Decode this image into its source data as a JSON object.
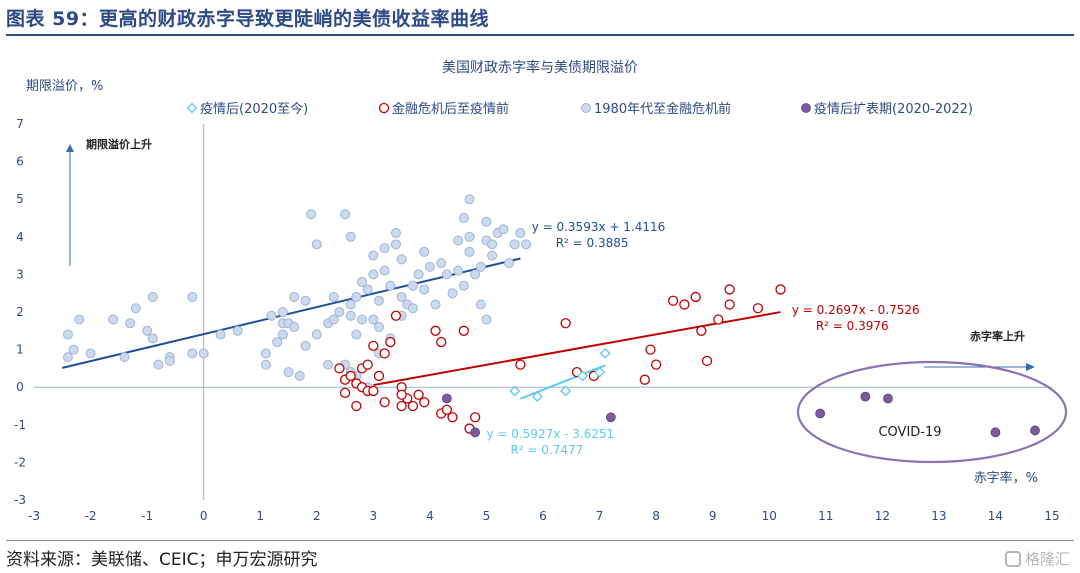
{
  "header": {
    "title": "图表 59：更高的财政赤字导致更陡峭的美债收益率曲线"
  },
  "footer": {
    "source": "资料来源：美联储、CEIC；申万宏源研究",
    "watermark": "格隆汇"
  },
  "colors": {
    "brand": "#2e4a86",
    "post_covid": "#5bc8f5",
    "post_crisis": "#c00000",
    "pre_crisis_fill": "#cdd9ee",
    "pre_crisis_edge": "#9fb4d8",
    "covid_expansion": "#7a5c9e",
    "fit_1980": "#1f4e9c",
    "fit_crisis": "#c00000",
    "fit_covid": "#5bc8f5"
  },
  "chart_data": {
    "type": "scatter",
    "title": "美国财政赤字率与美债期限溢价",
    "ylabel": "期限溢价，%",
    "xlabel": "赤字率，%",
    "xlim": [
      -3,
      15
    ],
    "ylim": [
      -3,
      7
    ],
    "x_ticks": [
      "-3",
      "-2",
      "-1",
      "0",
      "1",
      "2",
      "3",
      "4",
      "5",
      "6",
      "7",
      "8",
      "9",
      "10",
      "11",
      "12",
      "13",
      "14",
      "15"
    ],
    "y_ticks": [
      "7",
      "6",
      "5",
      "4",
      "3",
      "2",
      "1",
      "0",
      "-1",
      "-2",
      "-3"
    ],
    "grid": false,
    "legend_position": "top",
    "annotations": {
      "y_arrow_label": "期限溢价上升",
      "x_arrow_label": "赤字率上升",
      "covid_label": "COVID-19"
    },
    "series": [
      {
        "name": "疫情后(2020至今)",
        "marker": "diamond",
        "points": [
          [
            5.5,
            -0.1
          ],
          [
            5.9,
            -0.25
          ],
          [
            6.4,
            -0.1
          ],
          [
            6.7,
            0.3
          ],
          [
            7.0,
            0.4
          ],
          [
            7.1,
            0.9
          ]
        ]
      },
      {
        "name": "金融危机后至疫情前",
        "marker": "circle-open",
        "points": [
          [
            2.4,
            0.5
          ],
          [
            2.5,
            0.2
          ],
          [
            2.5,
            -0.15
          ],
          [
            2.6,
            0.3
          ],
          [
            2.7,
            0.1
          ],
          [
            2.8,
            0.5
          ],
          [
            2.8,
            0.0
          ],
          [
            2.9,
            -0.1
          ],
          [
            2.9,
            0.6
          ],
          [
            3.0,
            -0.1
          ],
          [
            3.1,
            0.3
          ],
          [
            3.2,
            0.9
          ],
          [
            3.3,
            1.2
          ],
          [
            3.4,
            1.9
          ],
          [
            3.0,
            1.1
          ],
          [
            3.2,
            -0.4
          ],
          [
            3.5,
            0.0
          ],
          [
            3.6,
            -0.3
          ],
          [
            3.7,
            -0.5
          ],
          [
            3.8,
            -0.2
          ],
          [
            3.9,
            -0.4
          ],
          [
            4.1,
            1.5
          ],
          [
            4.2,
            1.2
          ],
          [
            4.2,
            -0.7
          ],
          [
            4.3,
            -0.6
          ],
          [
            4.4,
            -0.8
          ],
          [
            4.6,
            1.5
          ],
          [
            4.7,
            -1.1
          ],
          [
            4.8,
            -0.8
          ],
          [
            3.5,
            -0.2
          ],
          [
            5.6,
            0.6
          ],
          [
            6.4,
            1.7
          ],
          [
            6.6,
            0.4
          ],
          [
            6.9,
            0.3
          ],
          [
            7.8,
            0.2
          ],
          [
            7.9,
            1.0
          ],
          [
            8.0,
            0.6
          ],
          [
            8.3,
            2.3
          ],
          [
            8.5,
            2.2
          ],
          [
            8.7,
            2.4
          ],
          [
            8.8,
            1.5
          ],
          [
            8.9,
            0.7
          ],
          [
            9.1,
            1.8
          ],
          [
            9.3,
            2.2
          ],
          [
            9.3,
            2.6
          ],
          [
            9.8,
            2.1
          ],
          [
            10.2,
            2.6
          ],
          [
            3.5,
            -0.5
          ],
          [
            2.7,
            -0.5
          ]
        ]
      },
      {
        "name": "1980年代至金融危机前",
        "marker": "circle-filled",
        "points": [
          [
            -2.4,
            0.8
          ],
          [
            -2.4,
            1.4
          ],
          [
            -2.3,
            1.0
          ],
          [
            -2.2,
            1.8
          ],
          [
            -2.0,
            0.9
          ],
          [
            -1.6,
            1.8
          ],
          [
            -1.4,
            0.8
          ],
          [
            -1.3,
            1.7
          ],
          [
            -1.2,
            2.1
          ],
          [
            -1.0,
            1.5
          ],
          [
            -0.9,
            1.3
          ],
          [
            -0.9,
            2.4
          ],
          [
            -0.8,
            0.6
          ],
          [
            -0.6,
            0.8
          ],
          [
            -0.6,
            0.7
          ],
          [
            -0.2,
            0.9
          ],
          [
            -0.2,
            2.4
          ],
          [
            0.0,
            0.9
          ],
          [
            0.3,
            1.4
          ],
          [
            0.6,
            1.5
          ],
          [
            1.1,
            0.9
          ],
          [
            1.1,
            0.6
          ],
          [
            1.2,
            1.9
          ],
          [
            1.3,
            1.2
          ],
          [
            1.4,
            1.4
          ],
          [
            1.4,
            1.7
          ],
          [
            1.4,
            2.0
          ],
          [
            1.5,
            0.4
          ],
          [
            1.5,
            1.7
          ],
          [
            1.6,
            1.6
          ],
          [
            1.6,
            2.4
          ],
          [
            1.7,
            0.3
          ],
          [
            1.8,
            2.3
          ],
          [
            1.8,
            1.1
          ],
          [
            1.9,
            4.6
          ],
          [
            2.0,
            3.8
          ],
          [
            2.0,
            1.4
          ],
          [
            2.2,
            0.6
          ],
          [
            2.2,
            1.7
          ],
          [
            2.3,
            1.8
          ],
          [
            2.3,
            2.4
          ],
          [
            2.4,
            2.0
          ],
          [
            2.5,
            0.6
          ],
          [
            2.5,
            4.6
          ],
          [
            2.6,
            2.2
          ],
          [
            2.6,
            4.0
          ],
          [
            2.6,
            1.9
          ],
          [
            2.7,
            1.4
          ],
          [
            2.7,
            0.3
          ],
          [
            2.7,
            2.4
          ],
          [
            2.8,
            1.8
          ],
          [
            2.8,
            2.8
          ],
          [
            2.9,
            2.6
          ],
          [
            3.0,
            3.0
          ],
          [
            3.0,
            3.5
          ],
          [
            3.0,
            1.8
          ],
          [
            3.1,
            2.3
          ],
          [
            3.1,
            1.6
          ],
          [
            3.1,
            0.9
          ],
          [
            3.2,
            3.7
          ],
          [
            3.2,
            3.1
          ],
          [
            3.3,
            2.7
          ],
          [
            3.3,
            1.3
          ],
          [
            3.4,
            4.1
          ],
          [
            3.4,
            3.8
          ],
          [
            3.5,
            3.4
          ],
          [
            3.5,
            2.4
          ],
          [
            3.5,
            1.9
          ],
          [
            3.6,
            2.2
          ],
          [
            3.7,
            2.1
          ],
          [
            3.7,
            2.7
          ],
          [
            3.8,
            3.0
          ],
          [
            3.9,
            2.6
          ],
          [
            3.9,
            3.6
          ],
          [
            4.0,
            3.2
          ],
          [
            4.1,
            2.2
          ],
          [
            4.2,
            3.3
          ],
          [
            4.3,
            3.0
          ],
          [
            4.4,
            2.5
          ],
          [
            4.5,
            3.1
          ],
          [
            4.5,
            3.9
          ],
          [
            4.6,
            2.7
          ],
          [
            4.6,
            4.5
          ],
          [
            4.7,
            4.0
          ],
          [
            4.7,
            3.6
          ],
          [
            4.7,
            5.0
          ],
          [
            4.8,
            3.0
          ],
          [
            4.9,
            3.2
          ],
          [
            4.9,
            2.2
          ],
          [
            5.0,
            4.4
          ],
          [
            5.0,
            3.9
          ],
          [
            5.0,
            1.8
          ],
          [
            5.1,
            3.5
          ],
          [
            5.1,
            3.8
          ],
          [
            5.2,
            4.1
          ],
          [
            5.3,
            4.2
          ],
          [
            5.4,
            3.3
          ],
          [
            5.5,
            3.8
          ],
          [
            5.6,
            4.1
          ],
          [
            5.7,
            3.8
          ],
          [
            2.6,
            0.4
          ],
          [
            2.9,
            0.0
          ]
        ]
      },
      {
        "name": "疫情后扩表期(2020-2022)",
        "marker": "circle-dark",
        "points": [
          [
            4.3,
            -0.3
          ],
          [
            4.8,
            -1.2
          ],
          [
            7.2,
            -0.8
          ],
          [
            10.9,
            -0.7
          ],
          [
            11.7,
            -0.25
          ],
          [
            12.1,
            -0.3
          ],
          [
            14.0,
            -1.2
          ],
          [
            14.7,
            -1.15
          ]
        ]
      }
    ],
    "trendlines": [
      {
        "series": "1980年代至金融危机前",
        "equation": "y = 0.3593x + 1.4116",
        "r2": "R² = 0.3885",
        "slope": 0.3593,
        "intercept": 1.4116,
        "x_range": [
          -2.5,
          5.6
        ]
      },
      {
        "series": "金融危机后至疫情前",
        "equation": "y = 0.2697x - 0.7526",
        "r2": "R² = 0.3976",
        "slope": 0.2697,
        "intercept": -0.7526,
        "x_range": [
          3.0,
          10.2
        ]
      },
      {
        "series": "疫情后(2020至今)",
        "equation": "y = 0.5927x - 3.6251",
        "r2": "R² = 0.7477",
        "slope": 0.5927,
        "intercept": -3.6251,
        "x_range": [
          5.6,
          7.1
        ]
      }
    ]
  }
}
